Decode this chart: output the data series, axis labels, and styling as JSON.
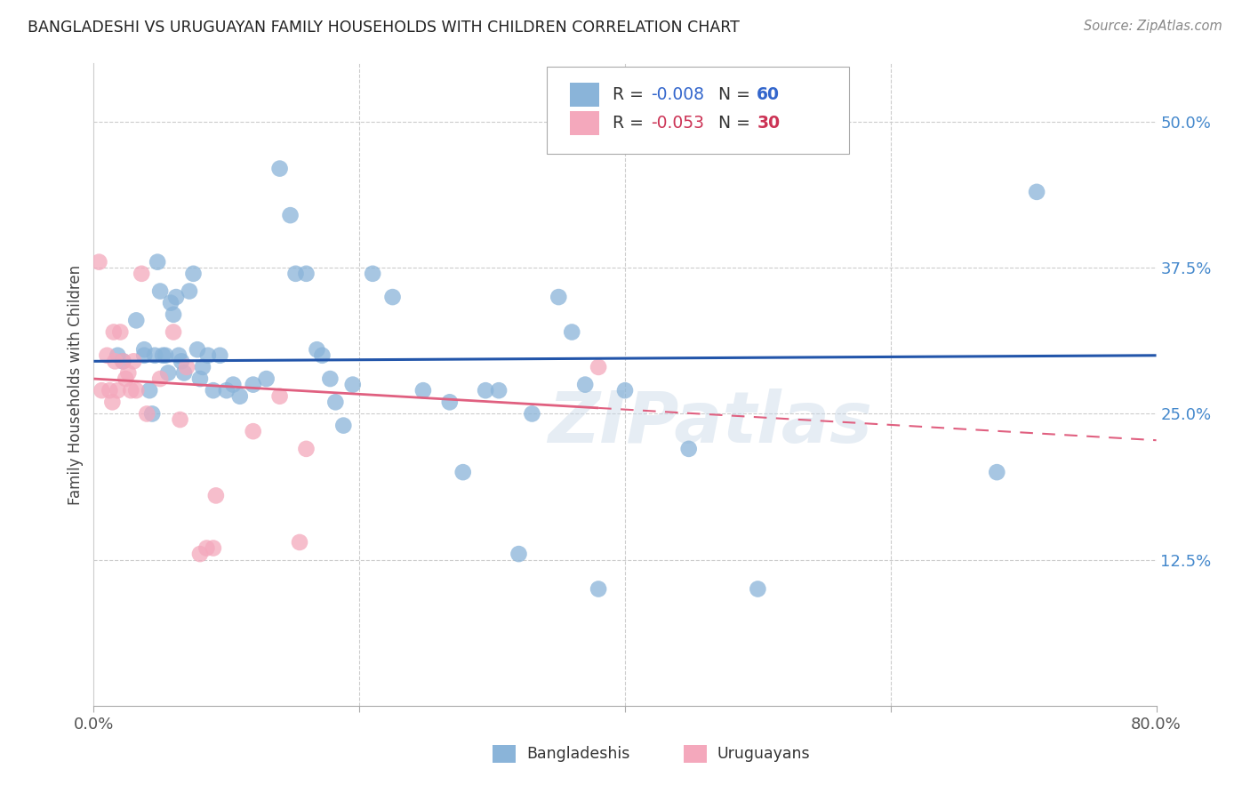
{
  "title": "BANGLADESHI VS URUGUAYAN FAMILY HOUSEHOLDS WITH CHILDREN CORRELATION CHART",
  "source": "Source: ZipAtlas.com",
  "ylabel": "Family Households with Children",
  "x_min": 0.0,
  "x_max": 0.8,
  "y_min": 0.0,
  "y_max": 0.55,
  "y_ticks": [
    0.0,
    0.125,
    0.25,
    0.375,
    0.5
  ],
  "y_tick_labels": [
    "",
    "12.5%",
    "25.0%",
    "37.5%",
    "50.0%"
  ],
  "blue_R": -0.008,
  "blue_N": 60,
  "pink_R": -0.053,
  "pink_N": 30,
  "blue_color": "#8ab4d9",
  "pink_color": "#f4a8bc",
  "blue_line_color": "#2255aa",
  "pink_line_color": "#e06080",
  "watermark": "ZIPatlas",
  "blue_line_y_at_x0": 0.295,
  "blue_line_y_at_x80": 0.3,
  "pink_line_y_at_x0": 0.28,
  "pink_line_y_at_x38": 0.255,
  "pink_line_solid_end": 0.38,
  "blue_points_x": [
    0.018,
    0.022,
    0.032,
    0.038,
    0.038,
    0.042,
    0.044,
    0.046,
    0.048,
    0.05,
    0.052,
    0.054,
    0.056,
    0.058,
    0.06,
    0.062,
    0.064,
    0.066,
    0.068,
    0.072,
    0.075,
    0.078,
    0.08,
    0.082,
    0.086,
    0.09,
    0.095,
    0.1,
    0.105,
    0.11,
    0.12,
    0.13,
    0.14,
    0.148,
    0.152,
    0.16,
    0.168,
    0.172,
    0.178,
    0.182,
    0.188,
    0.195,
    0.21,
    0.225,
    0.248,
    0.268,
    0.278,
    0.295,
    0.305,
    0.32,
    0.33,
    0.35,
    0.36,
    0.37,
    0.38,
    0.4,
    0.448,
    0.5,
    0.68,
    0.71
  ],
  "blue_points_y": [
    0.3,
    0.295,
    0.33,
    0.305,
    0.3,
    0.27,
    0.25,
    0.3,
    0.38,
    0.355,
    0.3,
    0.3,
    0.285,
    0.345,
    0.335,
    0.35,
    0.3,
    0.295,
    0.285,
    0.355,
    0.37,
    0.305,
    0.28,
    0.29,
    0.3,
    0.27,
    0.3,
    0.27,
    0.275,
    0.265,
    0.275,
    0.28,
    0.46,
    0.42,
    0.37,
    0.37,
    0.305,
    0.3,
    0.28,
    0.26,
    0.24,
    0.275,
    0.37,
    0.35,
    0.27,
    0.26,
    0.2,
    0.27,
    0.27,
    0.13,
    0.25,
    0.35,
    0.32,
    0.275,
    0.1,
    0.27,
    0.22,
    0.1,
    0.2,
    0.44
  ],
  "pink_points_x": [
    0.004,
    0.006,
    0.01,
    0.012,
    0.014,
    0.015,
    0.016,
    0.018,
    0.02,
    0.022,
    0.024,
    0.026,
    0.028,
    0.03,
    0.032,
    0.036,
    0.04,
    0.05,
    0.06,
    0.065,
    0.07,
    0.08,
    0.085,
    0.09,
    0.092,
    0.12,
    0.14,
    0.155,
    0.16,
    0.38
  ],
  "pink_points_y": [
    0.38,
    0.27,
    0.3,
    0.27,
    0.26,
    0.32,
    0.295,
    0.27,
    0.32,
    0.295,
    0.28,
    0.285,
    0.27,
    0.295,
    0.27,
    0.37,
    0.25,
    0.28,
    0.32,
    0.245,
    0.29,
    0.13,
    0.135,
    0.135,
    0.18,
    0.235,
    0.265,
    0.14,
    0.22,
    0.29
  ]
}
